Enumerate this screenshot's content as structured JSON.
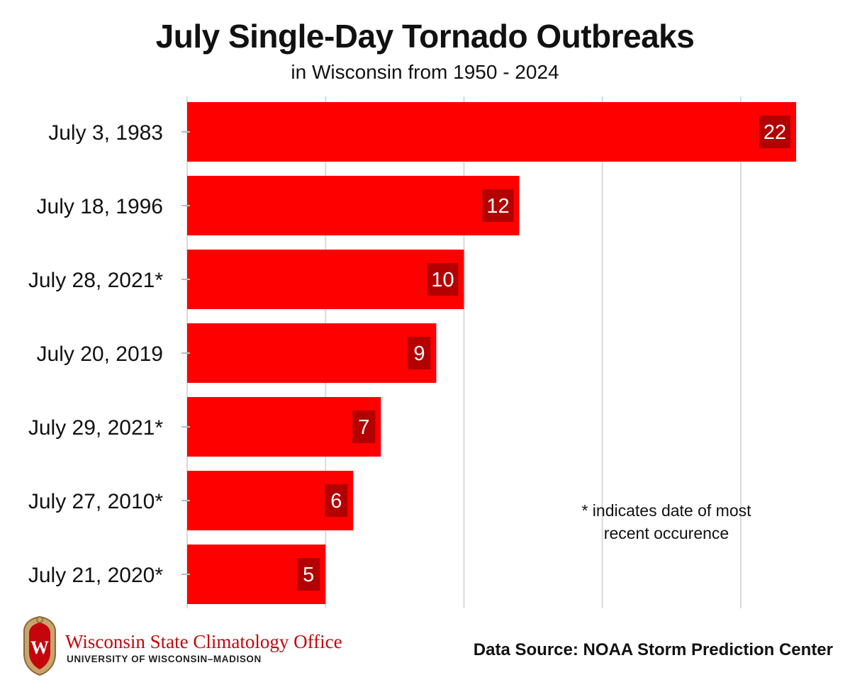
{
  "chart_data": {
    "type": "bar",
    "orientation": "horizontal",
    "title": "July Single-Day Tornado Outbreaks",
    "subtitle": "in Wisconsin from 1950 - 2024",
    "categories": [
      "July 3, 1983",
      "July 18, 1996",
      "July 28, 2021*",
      "July 20, 2019",
      "July 29, 2021*",
      "July 27, 2010*",
      "July 21, 2020*"
    ],
    "values": [
      22,
      12,
      10,
      9,
      7,
      6,
      5
    ],
    "xlim": [
      0,
      22
    ],
    "gridlines": [
      0,
      5,
      10,
      15,
      20
    ],
    "grid": true,
    "xlabel": "",
    "ylabel": "",
    "data_labels": true,
    "colors": {
      "bar": "#ff0000",
      "label_box": "#b30000",
      "grid": "#d9d9d9"
    }
  },
  "footnote": "* indicates date of most recent occurence",
  "source": "Data Source: NOAA Storm Prediction Center",
  "logo": {
    "name": "Wisconsin State Climatology Office",
    "subtitle": "UNIVERSITY OF WISCONSIN–MADISON",
    "crest_letter": "W",
    "color": "#c5050c"
  }
}
